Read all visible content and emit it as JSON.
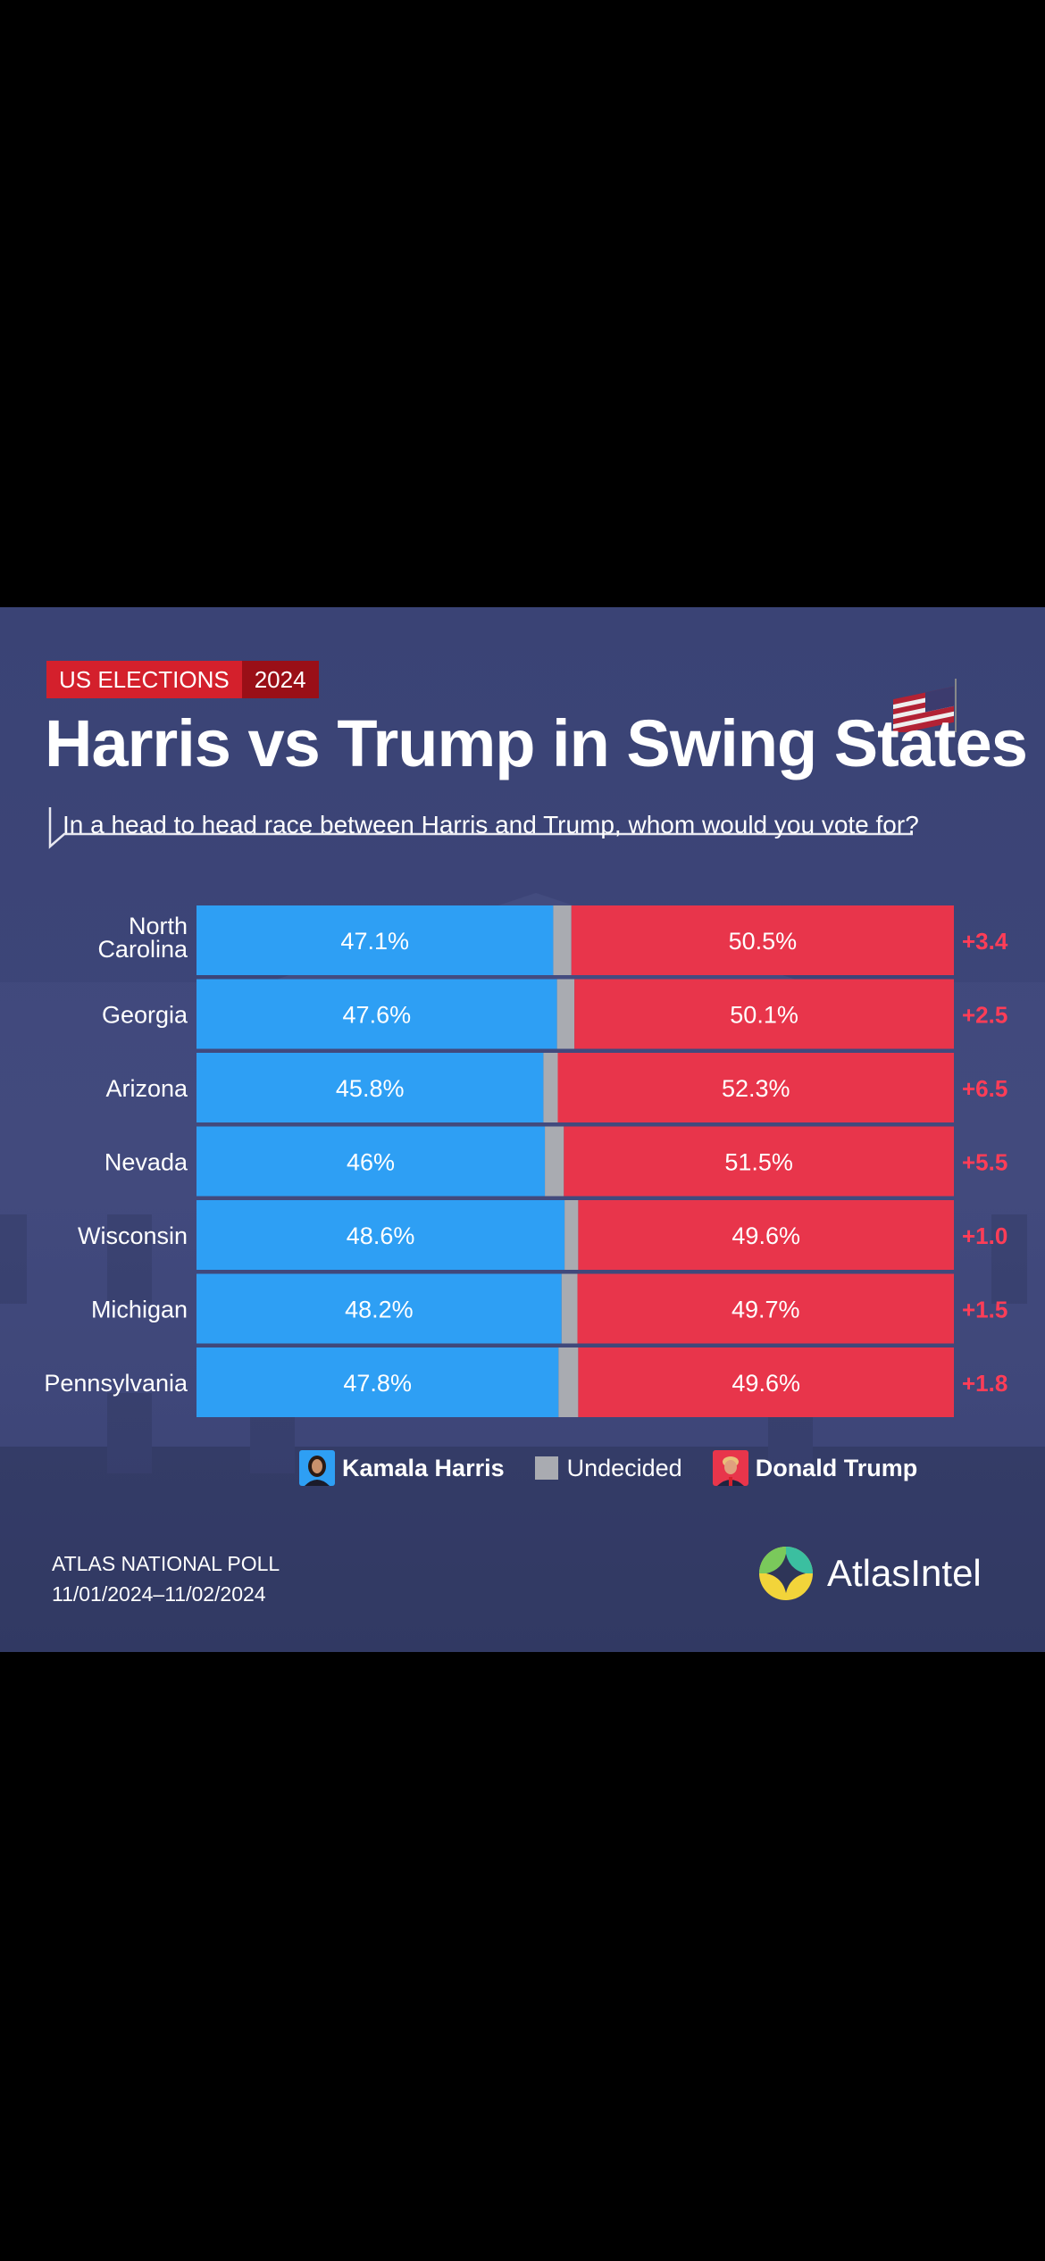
{
  "badge": {
    "left": "US ELECTIONS",
    "right": "2024"
  },
  "title": "Harris vs Trump in Swing States",
  "subtitle": "In a head to head race between Harris and Trump, whom would you vote for?",
  "legend": {
    "harris": "Kamala Harris",
    "undecided": "Undecided",
    "trump": "Donald Trump"
  },
  "footer": {
    "line1": "ATLAS NATIONAL POLL",
    "line2": "11/01/2024–11/02/2024"
  },
  "logo": "AtlasIntel",
  "colors": {
    "harris": "#2e9ff4",
    "undecided": "#a9abb1",
    "trump": "#e8354b",
    "margin": "#ff3d57"
  },
  "chart_data": {
    "type": "bar",
    "orientation": "horizontal-stacked",
    "categories": [
      [
        "North",
        "Carolina"
      ],
      [
        "Georgia"
      ],
      [
        "Arizona"
      ],
      [
        "Nevada"
      ],
      [
        "Wisconsin"
      ],
      [
        "Michigan"
      ],
      [
        "Pennsylvania"
      ]
    ],
    "series": [
      {
        "name": "Kamala Harris",
        "values": [
          47.1,
          47.6,
          45.8,
          46,
          48.6,
          48.2,
          47.8
        ],
        "labels": [
          "47.1%",
          "47.6%",
          "45.8%",
          "46%",
          "48.6%",
          "48.2%",
          "47.8%"
        ]
      },
      {
        "name": "Undecided",
        "values": [
          2.4,
          2.3,
          1.9,
          2.5,
          1.8,
          2.1,
          2.6
        ]
      },
      {
        "name": "Donald Trump",
        "values": [
          50.5,
          50.1,
          52.3,
          51.5,
          49.6,
          49.7,
          49.6
        ],
        "labels": [
          "50.5%",
          "50.1%",
          "52.3%",
          "51.5%",
          "49.6%",
          "49.7%",
          "49.6%"
        ]
      }
    ],
    "margins": [
      "+3.4",
      "+2.5",
      "+6.5",
      "+5.5",
      "+1.0",
      "+1.5",
      "+1.8"
    ],
    "xlim": [
      0,
      100
    ]
  }
}
